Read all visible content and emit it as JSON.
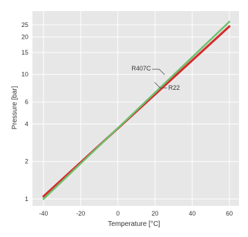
{
  "chart_data": {
    "type": "line",
    "title": "",
    "xlabel": "Temperature [°C]",
    "ylabel": "Pressure [bar]",
    "xlim": [
      -40,
      60
    ],
    "ylim": [
      1,
      25
    ],
    "yscale": "log",
    "grid": true,
    "xticks": [
      -40,
      -20,
      0,
      20,
      40,
      60
    ],
    "yticks": [
      1,
      2,
      4,
      6,
      10,
      15,
      20,
      25
    ],
    "series": [
      {
        "name": "R22",
        "x": [
          -40,
          60
        ],
        "y": [
          1.05,
          24.3
        ]
      },
      {
        "name": "R407C",
        "x": [
          -40,
          60
        ],
        "y": [
          1.0,
          26.5
        ]
      }
    ],
    "annotations": [
      {
        "text": "R407C",
        "series": "R407C",
        "x": 20,
        "y": 10.2
      },
      {
        "text": "R22",
        "series": "R22",
        "x": 22,
        "y": 8.0
      }
    ],
    "colors": {
      "background": "#ffffff",
      "plot_area": "#e7e7e8",
      "grid": "#ffffff",
      "R22": "#d62b2b",
      "R407C": "#6ec16e",
      "text": "#333333"
    }
  }
}
